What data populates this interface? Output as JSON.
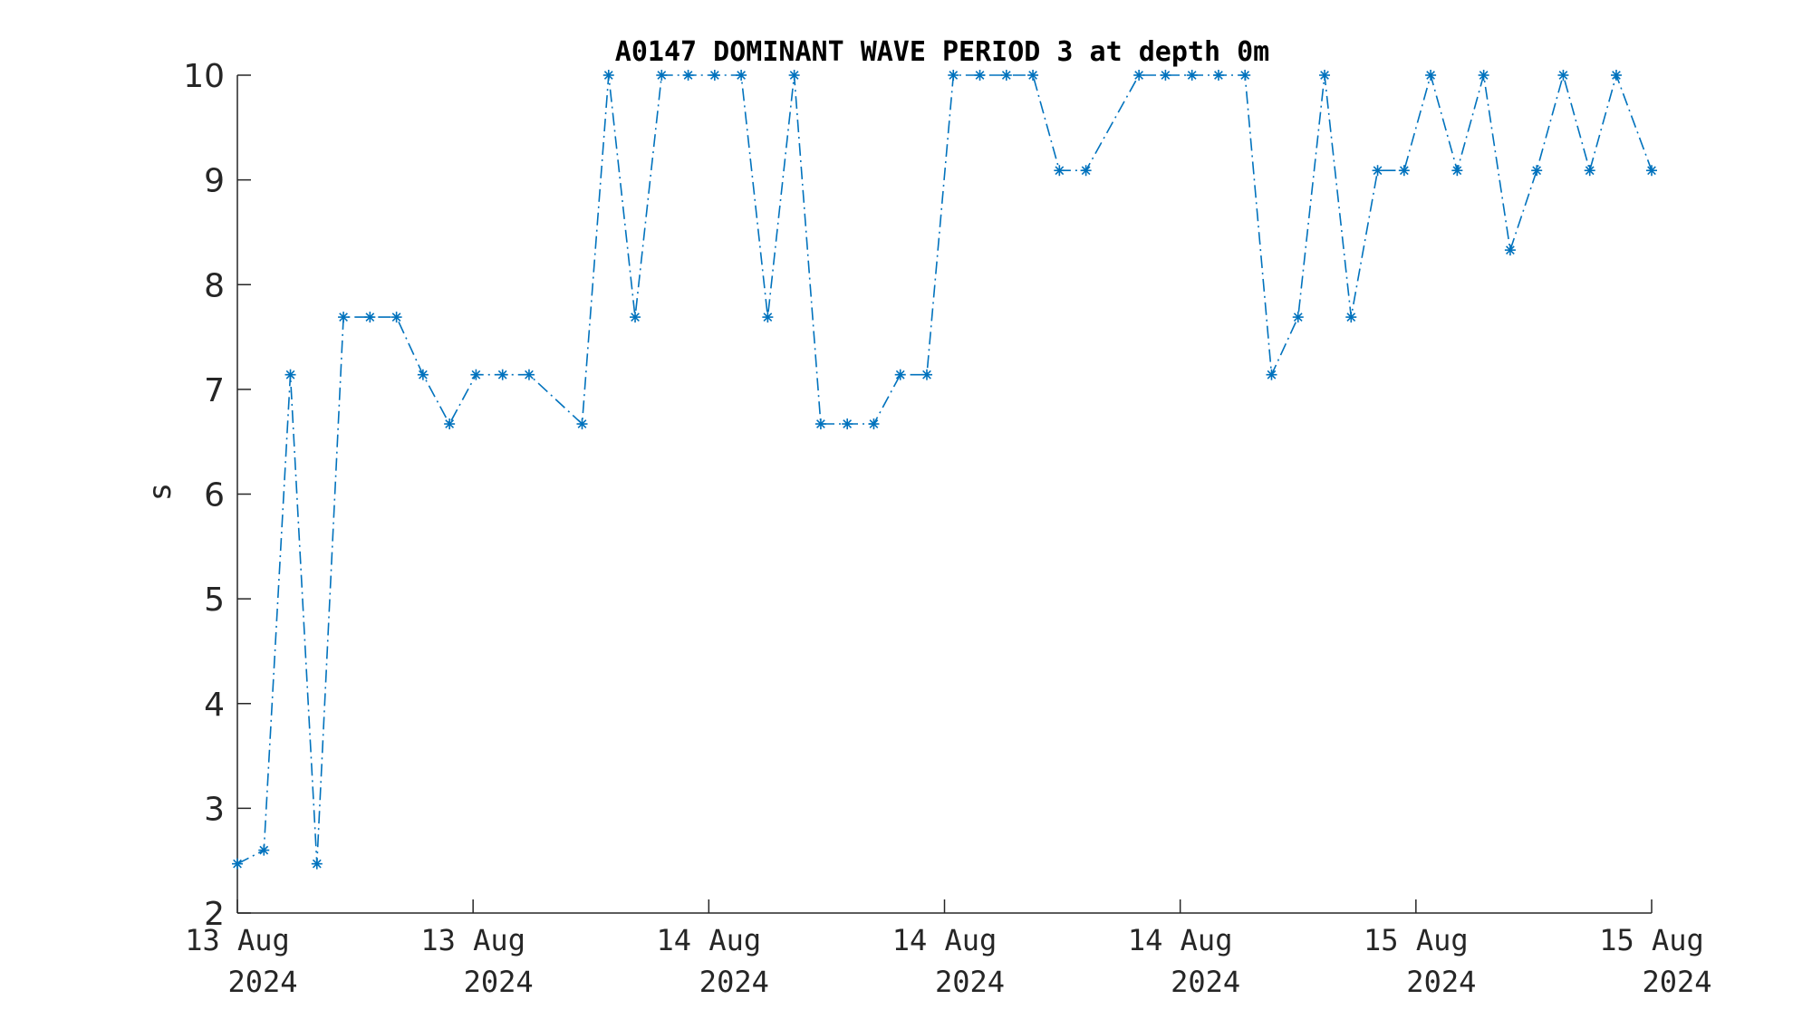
{
  "chart_data": {
    "type": "line",
    "title": "A0147 DOMINANT WAVE PERIOD 3 at depth 0m",
    "xlabel": "",
    "ylabel": "s",
    "ylim": [
      2,
      10
    ],
    "yticks": [
      2,
      3,
      4,
      5,
      6,
      7,
      8,
      9,
      10
    ],
    "xlim": [
      0,
      2.4
    ],
    "xticks": [
      {
        "x": 0.0,
        "line1": "13 Aug",
        "line2": "2024"
      },
      {
        "x": 0.4,
        "line1": "13 Aug",
        "line2": "2024"
      },
      {
        "x": 0.8,
        "line1": "14 Aug",
        "line2": "2024"
      },
      {
        "x": 1.2,
        "line1": "14 Aug",
        "line2": "2024"
      },
      {
        "x": 1.6,
        "line1": "14 Aug",
        "line2": "2024"
      },
      {
        "x": 2.0,
        "line1": "15 Aug",
        "line2": "2024"
      },
      {
        "x": 2.4,
        "line1": "15 Aug",
        "line2": "2024"
      }
    ],
    "grid": false,
    "series": [
      {
        "color": "#0072BD",
        "line_style": "dash-dot",
        "marker": "asterisk",
        "points": [
          [
            0.0,
            2.47
          ],
          [
            0.045,
            2.6
          ],
          [
            0.09,
            7.14
          ],
          [
            0.135,
            2.47
          ],
          [
            0.18,
            7.69
          ],
          [
            0.225,
            7.69
          ],
          [
            0.27,
            7.69
          ],
          [
            0.315,
            7.14
          ],
          [
            0.36,
            6.67
          ],
          [
            0.405,
            7.14
          ],
          [
            0.45,
            7.14
          ],
          [
            0.495,
            7.14
          ],
          [
            0.585,
            6.67
          ],
          [
            0.63,
            10.0
          ],
          [
            0.675,
            7.69
          ],
          [
            0.72,
            10.0
          ],
          [
            0.765,
            10.0
          ],
          [
            0.81,
            10.0
          ],
          [
            0.855,
            10.0
          ],
          [
            0.9,
            7.69
          ],
          [
            0.945,
            10.0
          ],
          [
            0.99,
            6.67
          ],
          [
            1.035,
            6.67
          ],
          [
            1.08,
            6.67
          ],
          [
            1.125,
            7.14
          ],
          [
            1.17,
            7.14
          ],
          [
            1.215,
            10.0
          ],
          [
            1.26,
            10.0
          ],
          [
            1.305,
            10.0
          ],
          [
            1.35,
            10.0
          ],
          [
            1.395,
            9.09
          ],
          [
            1.44,
            9.09
          ],
          [
            1.53,
            10.0
          ],
          [
            1.575,
            10.0
          ],
          [
            1.62,
            10.0
          ],
          [
            1.665,
            10.0
          ],
          [
            1.71,
            10.0
          ],
          [
            1.755,
            7.14
          ],
          [
            1.8,
            7.69
          ],
          [
            1.845,
            10.0
          ],
          [
            1.89,
            7.69
          ],
          [
            1.935,
            9.09
          ],
          [
            1.98,
            9.09
          ],
          [
            2.025,
            10.0
          ],
          [
            2.07,
            9.09
          ],
          [
            2.115,
            10.0
          ],
          [
            2.16,
            8.33
          ],
          [
            2.205,
            9.09
          ],
          [
            2.25,
            10.0
          ],
          [
            2.295,
            9.09
          ],
          [
            2.34,
            10.0
          ],
          [
            2.4,
            9.09
          ]
        ]
      }
    ]
  }
}
